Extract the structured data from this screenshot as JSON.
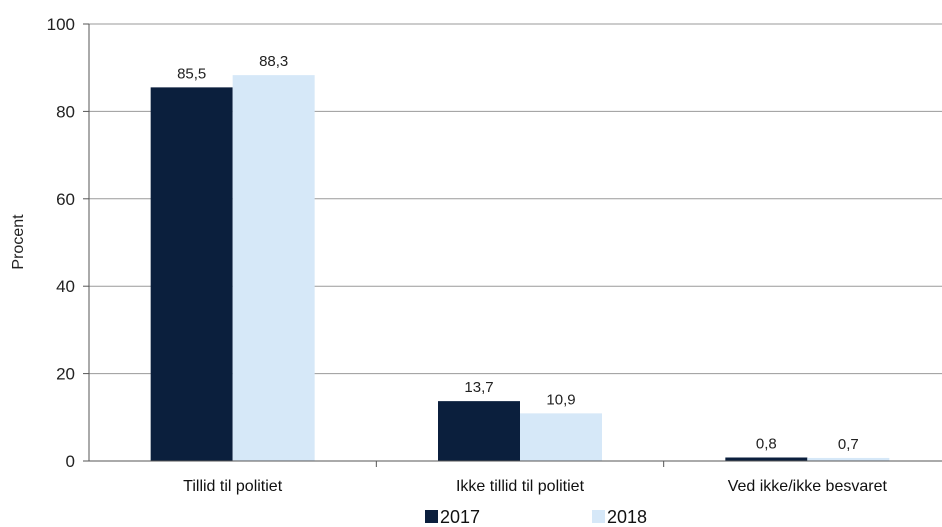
{
  "chart_data": {
    "type": "bar",
    "title": "",
    "xlabel": "",
    "ylabel": "Procent",
    "ylim": [
      0,
      100
    ],
    "yticks": [
      0,
      20,
      40,
      60,
      80,
      100
    ],
    "grid": true,
    "legend_position": "bottom",
    "categories": [
      "Tillid til politiet",
      "Ikke tillid til politiet",
      "Ved ikke/ikke besvaret"
    ],
    "series": [
      {
        "name": "2017",
        "color": "#0b1f3d",
        "values": [
          85.5,
          13.7,
          0.8
        ],
        "labels": [
          "85,5",
          "13,7",
          "0,8"
        ]
      },
      {
        "name": "2018",
        "color": "#d6e8f8",
        "values": [
          88.3,
          10.9,
          0.7
        ],
        "labels": [
          "88,3",
          "10,9",
          "0,7"
        ]
      }
    ]
  }
}
